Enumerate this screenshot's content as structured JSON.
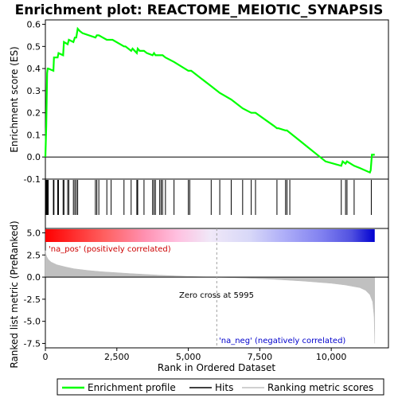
{
  "chart_data": [
    {
      "type": "line",
      "title": "Enrichment plot: REACTOME_MEIOTIC_SYNAPSIS",
      "ylabel": "Enrichment score (ES)",
      "ylim": [
        -0.1,
        0.62
      ],
      "yticks": [
        -0.1,
        0.0,
        0.1,
        0.2,
        0.3,
        0.4,
        0.5,
        0.6
      ],
      "ytick_labels": [
        "-0.1",
        "0.0",
        "0.1",
        "0.2",
        "0.3",
        "0.4",
        "0.5",
        "0.6"
      ],
      "xlim": [
        0,
        12000
      ],
      "series": [
        {
          "name": "Enrichment profile",
          "color": "#00ff00",
          "x": [
            0,
            30,
            60,
            80,
            100,
            280,
            300,
            430,
            460,
            620,
            650,
            780,
            820,
            980,
            1030,
            1080,
            1130,
            1200,
            1300,
            1750,
            1800,
            1870,
            2150,
            2300,
            2350,
            2750,
            2800,
            3000,
            3050,
            3200,
            3230,
            3300,
            3450,
            3550,
            3750,
            3800,
            3850,
            4000,
            4050,
            4100,
            4200,
            4500,
            5000,
            5100,
            5800,
            6100,
            6500,
            6900,
            7200,
            7350,
            8000,
            8100,
            8150,
            8400,
            8450,
            8550,
            9800,
            10350,
            10400,
            10500,
            10550,
            10800,
            11000,
            11350,
            11380,
            11420,
            11520
          ],
          "y": [
            0.0,
            0.14,
            0.38,
            0.4,
            0.4,
            0.39,
            0.45,
            0.45,
            0.47,
            0.46,
            0.52,
            0.51,
            0.53,
            0.52,
            0.54,
            0.54,
            0.58,
            0.57,
            0.56,
            0.54,
            0.55,
            0.55,
            0.53,
            0.53,
            0.53,
            0.5,
            0.5,
            0.48,
            0.49,
            0.47,
            0.49,
            0.48,
            0.48,
            0.47,
            0.46,
            0.47,
            0.46,
            0.46,
            0.46,
            0.46,
            0.45,
            0.43,
            0.39,
            0.39,
            0.32,
            0.29,
            0.26,
            0.22,
            0.2,
            0.2,
            0.14,
            0.13,
            0.13,
            0.12,
            0.12,
            0.11,
            -0.02,
            -0.04,
            -0.02,
            -0.03,
            -0.02,
            -0.04,
            -0.05,
            -0.07,
            -0.06,
            0.01,
            0.01
          ]
        }
      ]
    },
    {
      "type": "scatter",
      "series": [
        {
          "name": "Hits",
          "color": "#000000",
          "x": [
            20,
            40,
            60,
            80,
            100,
            280,
            300,
            430,
            460,
            620,
            650,
            780,
            820,
            980,
            1030,
            1080,
            1130,
            1750,
            1800,
            1870,
            2150,
            2300,
            2750,
            3000,
            3200,
            3230,
            3450,
            3750,
            3800,
            3850,
            4000,
            4050,
            4100,
            4200,
            4500,
            5000,
            5050,
            5800,
            6100,
            6500,
            6900,
            7200,
            7350,
            8100,
            8400,
            8450,
            8550,
            10350,
            10500,
            10550,
            10800,
            11400
          ]
        }
      ]
    },
    {
      "type": "heatmap",
      "stops": [
        {
          "pos": 0.0,
          "color": "#ff0000"
        },
        {
          "pos": 0.18,
          "color": "#ff6060"
        },
        {
          "pos": 0.3,
          "color": "#ff90b0"
        },
        {
          "pos": 0.4,
          "color": "#ffc0e0"
        },
        {
          "pos": 0.5,
          "color": "#f0e8f8"
        },
        {
          "pos": 0.62,
          "color": "#d8d8f8"
        },
        {
          "pos": 0.72,
          "color": "#b0b0f8"
        },
        {
          "pos": 0.84,
          "color": "#8080f0"
        },
        {
          "pos": 0.93,
          "color": "#5050e0"
        },
        {
          "pos": 1.0,
          "color": "#0000d0"
        }
      ]
    },
    {
      "type": "area",
      "ylabel": "Ranked list metric (PreRanked)",
      "xlabel": "Rank in Ordered Dataset",
      "ylim": [
        -8,
        5.5
      ],
      "yticks": [
        -7.5,
        -5.0,
        -2.5,
        0.0,
        2.5,
        5.0
      ],
      "ytick_labels": [
        "-7.5",
        "-5.0",
        "-2.5",
        "0.0",
        "2.5",
        "5.0"
      ],
      "xlim": [
        0,
        12000
      ],
      "xticks": [
        0,
        2500,
        5000,
        7500,
        10000
      ],
      "xtick_labels": [
        "0",
        "2,500",
        "5,000",
        "7,500",
        "10,000"
      ],
      "series": [
        {
          "name": "Ranking metric scores",
          "color": "#c0c0c0",
          "x": [
            0,
            20,
            50,
            100,
            200,
            400,
            700,
            1000,
            1500,
            2000,
            3000,
            4000,
            5000,
            5995,
            7000,
            8000,
            9000,
            10000,
            10500,
            11000,
            11200,
            11350,
            11450,
            11500,
            11520
          ],
          "y": [
            3.0,
            2.6,
            2.3,
            2.0,
            1.7,
            1.4,
            1.15,
            0.95,
            0.75,
            0.6,
            0.4,
            0.22,
            0.08,
            0.0,
            -0.12,
            -0.25,
            -0.45,
            -0.7,
            -0.9,
            -1.2,
            -1.5,
            -2.0,
            -2.8,
            -4.5,
            -7.5
          ]
        }
      ],
      "annotations": {
        "pos_label": "'na_pos' (positively correlated)",
        "neg_label": "'na_neg' (negatively correlated)",
        "zero_cross": "Zero cross at 5995",
        "zero_x": 5995
      }
    }
  ],
  "legend": {
    "items": [
      {
        "label": "Enrichment profile",
        "color": "#00ff00"
      },
      {
        "label": "Hits",
        "color": "#000000"
      },
      {
        "label": "Ranking metric scores",
        "color": "#c0c0c0"
      }
    ]
  }
}
